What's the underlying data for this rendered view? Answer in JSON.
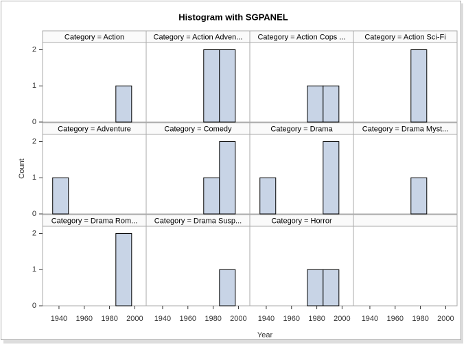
{
  "chart_data": {
    "type": "histogram",
    "title": "Histogram with SGPANEL",
    "xlabel": "Year",
    "ylabel": "Count",
    "bins": [
      1935,
      1947.5,
      1960,
      1972.5,
      1985,
      1997.5
    ],
    "xlim": [
      1927,
      2009
    ],
    "xticks": [
      1940,
      1960,
      1980,
      2000
    ],
    "ylim": [
      0,
      2.2
    ],
    "yticks": [
      0,
      1,
      2
    ],
    "color": "#c8d4e6",
    "panels": [
      {
        "label": "Category = Action",
        "values": [
          0,
          0,
          0,
          0,
          1
        ]
      },
      {
        "label": "Category = Action Adven...",
        "values": [
          0,
          0,
          0,
          2,
          2
        ]
      },
      {
        "label": "Category = Action Cops ...",
        "values": [
          0,
          0,
          0,
          1,
          1
        ]
      },
      {
        "label": "Category = Action Sci-Fi",
        "values": [
          0,
          0,
          0,
          2,
          0
        ]
      },
      {
        "label": "Category = Adventure",
        "values": [
          1,
          0,
          0,
          0,
          0
        ]
      },
      {
        "label": "Category = Comedy",
        "values": [
          0,
          0,
          0,
          1,
          2
        ]
      },
      {
        "label": "Category = Drama",
        "values": [
          1,
          0,
          0,
          0,
          2
        ]
      },
      {
        "label": "Category = Drama Myst...",
        "values": [
          0,
          0,
          0,
          1,
          0
        ]
      },
      {
        "label": "Category = Drama Rom...",
        "values": [
          0,
          0,
          0,
          0,
          2
        ]
      },
      {
        "label": "Category = Drama Susp...",
        "values": [
          0,
          0,
          0,
          0,
          1
        ]
      },
      {
        "label": "Category = Horror",
        "values": [
          0,
          0,
          0,
          1,
          1
        ]
      }
    ]
  }
}
